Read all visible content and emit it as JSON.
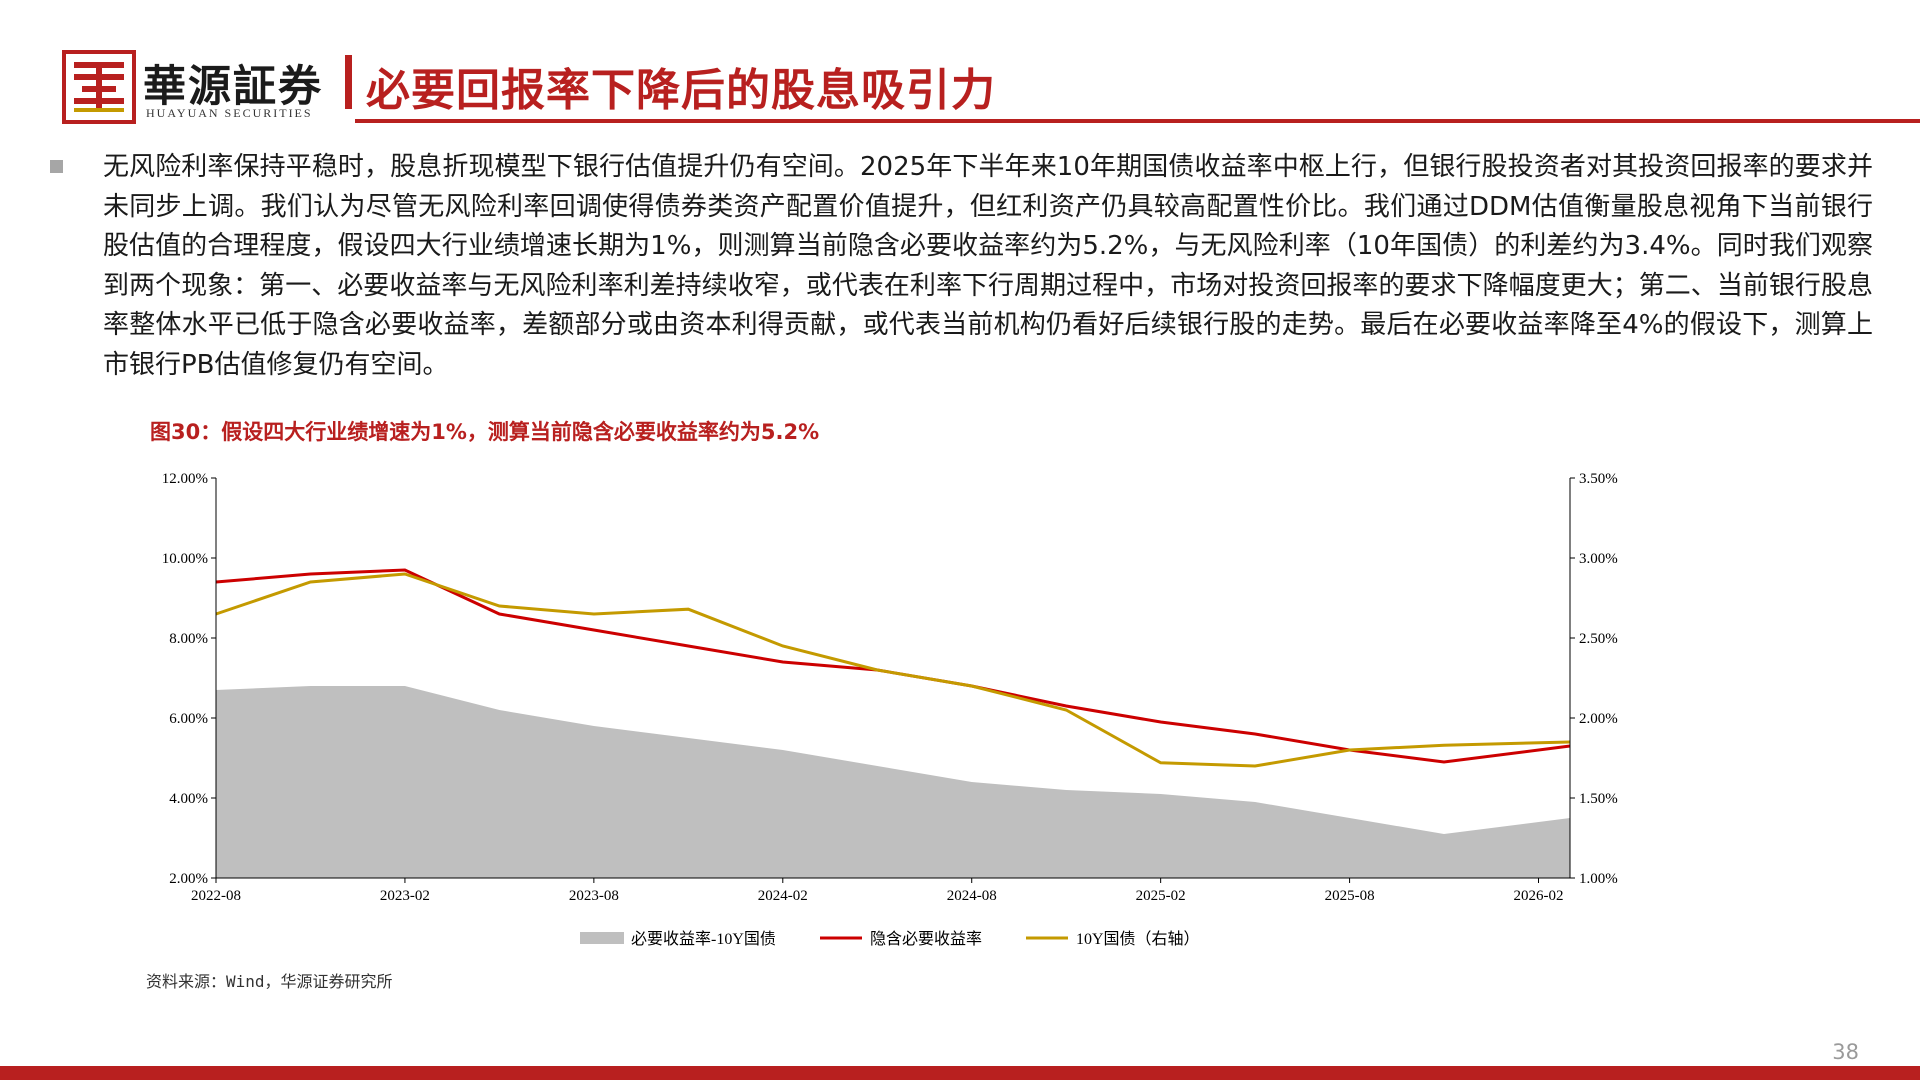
{
  "header": {
    "brand_cn": "華源証券",
    "brand_en": "HUAYUAN SECURITIES",
    "title": "必要回报率下降后的股息吸引力"
  },
  "body_text": "无风险利率保持平稳时，股息折现模型下银行估值提升仍有空间。2025年下半年来10年期国债收益率中枢上行，但银行股投资者对其投资回报率的要求并未同步上调。我们认为尽管无风险利率回调使得债券类资产配置价值提升，但红利资产仍具较高配置性价比。我们通过DDM估值衡量股息视角下当前银行股估值的合理程度，假设四大行业绩增速长期为1%，则测算当前隐含必要收益率约为5.2%，与无风险利率（10年国债）的利差约为3.4%。同时我们观察到两个现象：第一、必要收益率与无风险利率利差持续收窄，或代表在利率下行周期过程中，市场对投资回报率的要求下降幅度更大；第二、当前银行股息率整体水平已低于隐含必要收益率，差额部分或由资本利得贡献，或代表当前机构仍看好后续银行股的走势。最后在必要收益率降至4%的假设下，测算上市银行PB估值修复仍有空间。",
  "figure_title": "图30：假设四大行业绩增速为1%，测算当前隐含必要收益率约为5.2%",
  "source": "资料来源：Wind，华源证券研究所",
  "page_number": "38",
  "colors": {
    "brand_red": "#b8201f",
    "spread_fill": "#bfbfbf",
    "implied_line": "#cc0000",
    "bond_line": "#c49a00"
  },
  "chart_data": {
    "type": "line",
    "x": [
      "2022-08",
      "2022-11",
      "2023-02",
      "2023-05",
      "2023-08",
      "2023-11",
      "2024-02",
      "2024-05",
      "2024-08",
      "2024-11",
      "2025-02",
      "2025-05",
      "2025-08",
      "2025-11",
      "2026-03"
    ],
    "xticks": [
      "2022-08",
      "2023-02",
      "2023-08",
      "2024-02",
      "2024-08",
      "2025-02",
      "2025-08",
      "2026-02"
    ],
    "ylim_left": [
      0.02,
      0.12
    ],
    "ylim_right": [
      0.01,
      0.035
    ],
    "yticks_left": [
      "2.00%",
      "4.00%",
      "6.00%",
      "8.00%",
      "10.00%",
      "12.00%"
    ],
    "yticks_right": [
      "1.00%",
      "1.50%",
      "2.00%",
      "2.50%",
      "3.00%",
      "3.50%"
    ],
    "series": [
      {
        "name": "必要收益率-10Y国债",
        "kind": "area",
        "axis": "left",
        "values": [
          0.067,
          0.068,
          0.068,
          0.062,
          0.058,
          0.055,
          0.052,
          0.048,
          0.044,
          0.042,
          0.041,
          0.039,
          0.035,
          0.031,
          0.035
        ]
      },
      {
        "name": "隐含必要收益率",
        "kind": "line",
        "axis": "left",
        "values": [
          0.094,
          0.096,
          0.097,
          0.086,
          0.082,
          0.078,
          0.074,
          0.072,
          0.068,
          0.063,
          0.059,
          0.056,
          0.052,
          0.049,
          0.053
        ]
      },
      {
        "name": "10Y国债（右轴）",
        "kind": "line",
        "axis": "right",
        "values": [
          0.0265,
          0.0285,
          0.029,
          0.027,
          0.0265,
          0.0268,
          0.0245,
          0.023,
          0.022,
          0.0205,
          0.0172,
          0.017,
          0.018,
          0.0183,
          0.0185
        ]
      }
    ]
  }
}
